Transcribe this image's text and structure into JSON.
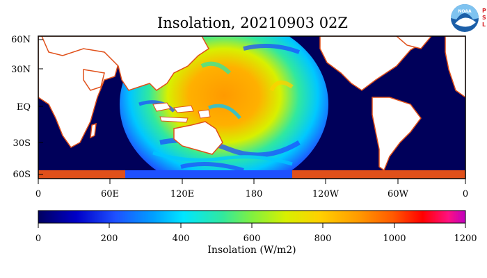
{
  "title": "Insolation, 20210903 02Z",
  "logo": {
    "noaa_text": "NOAA",
    "psl_letters": [
      "P",
      "S",
      "L"
    ],
    "noaa_color": "#1c5fa8",
    "psl_color": "#d7262b"
  },
  "map": {
    "lat_ticks": [
      "60N",
      "30N",
      "EQ",
      "30S",
      "60S"
    ],
    "lon_ticks": [
      "0",
      "60E",
      "120E",
      "180",
      "120W",
      "60W",
      "0"
    ],
    "ocean_background_color": "#00005a",
    "land_color": "#ffffff",
    "coast_color": "#e0501a"
  },
  "colorbar": {
    "ticks": [
      "0",
      "200",
      "400",
      "600",
      "800",
      "1000",
      "1200"
    ],
    "label": "Insolation (W/m2)",
    "min": 0,
    "max": 1200,
    "colors": [
      "#000060",
      "#0000c8",
      "#1e50ff",
      "#00a0ff",
      "#00e6ff",
      "#30e8a0",
      "#80f040",
      "#d8f000",
      "#ffd000",
      "#ff9a00",
      "#ff5a00",
      "#ff0000",
      "#ff1080",
      "#c000c0"
    ]
  }
}
